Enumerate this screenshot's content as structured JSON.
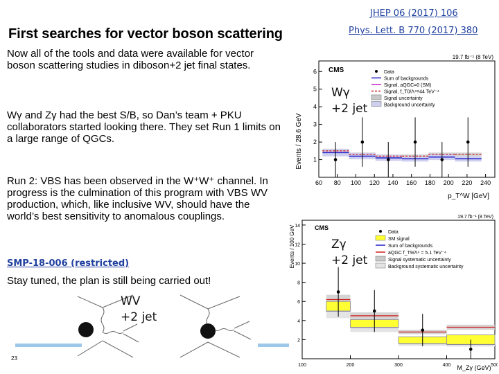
{
  "refs": {
    "jhep": "JHEP 06 (2017) 106",
    "plb": "Phys. Lett. B 770 (2017) 380"
  },
  "title": "First searches for vector boson scattering",
  "paragraphs": {
    "p1": "Now all of the tools and data were available for vector boson scattering studies in diboson+2 jet final states.",
    "p2": "Wγ and Zγ had the best S/B, so Dan’s team + PKU collaborators started looking there. They set Run 1 limits on a large range of QGCs.",
    "p3": "Run 2: VBS has been observed in the W⁺W⁺ channel. In progress is the culmination of this program with VBS WV production, which, like inclusive WV, should have the world’s best sensitivity to anomalous couplings."
  },
  "smp_link": "SMP-18-006 (restricted)",
  "stay_tuned": "Stay tuned, the plan is still being carried out!",
  "labels": {
    "wa": "Wγ",
    "za": "Zγ",
    "wv": "WV",
    "jet": "+2 jet"
  },
  "page_number": "23",
  "colors": {
    "link": "#1f3f9f",
    "accent_bar": "#9ec7ea",
    "signal_blue": "#2020c8",
    "aqgc_red": "#d02020",
    "data": "#000000"
  },
  "chart_data": [
    {
      "type": "bar",
      "title": "",
      "lumi": "19.7 fb⁻¹ (8 TeV)",
      "experiment": "CMS",
      "ylabel": "Events / 28.6 GeV",
      "xlabel": "p_T^W [GeV]",
      "x_ticks": [
        "60",
        "80",
        "100",
        "120",
        "140",
        "160",
        "180",
        "200",
        "220",
        "240"
      ],
      "y_ticks": [
        "1",
        "2",
        "3",
        "4",
        "5",
        "6"
      ],
      "ylim": [
        0,
        6.6
      ],
      "xlim": [
        60,
        250
      ],
      "legend": [
        "Data",
        "Sum of backgrounds",
        "Signal, aQGC=0 (SM)",
        "Signal, f_T0/Λ⁴=44 TeV⁻⁴",
        "Signal uncertainty",
        "Background uncertainty"
      ],
      "bins": [
        64,
        92.6,
        121.2,
        149.8,
        178.4,
        207,
        235.6
      ],
      "background": [
        1.4,
        1.2,
        1.1,
        1.05,
        1.15,
        1.05
      ],
      "signal_aqgc": [
        1.5,
        1.3,
        1.2,
        1.2,
        1.3,
        1.3
      ],
      "data_x": [
        78,
        107,
        135,
        164,
        193,
        221
      ],
      "data_y": [
        1.0,
        2.0,
        1.0,
        2.0,
        1.0,
        2.0
      ],
      "data_err": [
        1.0,
        1.4,
        1.0,
        1.4,
        1.0,
        1.4
      ]
    },
    {
      "type": "bar",
      "title": "",
      "lumi": "19.7 fb⁻¹ (8 TeV)",
      "experiment": "CMS",
      "ylabel": "Events / 100 GeV",
      "xlabel": "M_Zγ (GeV)",
      "x_ticks": [
        "100",
        "200",
        "300",
        "400",
        "500"
      ],
      "y_ticks": [
        "2",
        "4",
        "6",
        "8",
        "10",
        "12",
        "14"
      ],
      "ylim": [
        0,
        14.5
      ],
      "xlim": [
        100,
        500
      ],
      "legend": [
        "Data",
        "SM signal",
        "Sum of backgrounds",
        "aQGC f_T9/Λ⁴ = 5.1 TeV⁻⁴",
        "Signal systematic uncertainty",
        "Background systematic uncertainty"
      ],
      "bins": [
        150,
        200,
        300,
        400,
        500
      ],
      "background": [
        5.0,
        3.3,
        1.6,
        1.5
      ],
      "signal_sm": [
        6.0,
        4.1,
        2.3,
        2.5
      ],
      "signal_aqgc": [
        6.2,
        4.5,
        2.8,
        3.3
      ],
      "data_x": [
        175,
        250,
        350,
        450
      ],
      "data_y": [
        7.0,
        5.0,
        3.0,
        1.0
      ],
      "data_err": [
        2.6,
        2.2,
        1.7,
        1.0
      ]
    }
  ]
}
